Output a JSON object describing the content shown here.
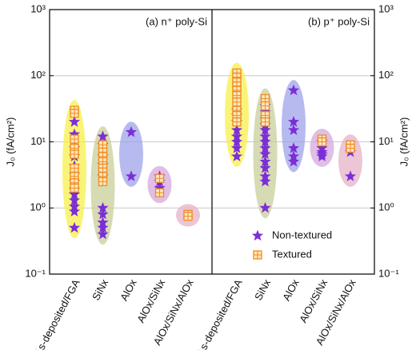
{
  "chart_data": [
    {
      "type": "scatter",
      "title": "(a) n⁺ poly-Si",
      "y_label": "J₀ (fA/cm²)",
      "y_axis_side": "left",
      "categories": [
        "As-deposited/FGA",
        "SiNx",
        "AlOx",
        "AlOx/SiNx",
        "AlOx/SiNx/AlOx"
      ],
      "highlight_colors": [
        "#f7f04a",
        "#c9cf9a",
        "#9fa3ea",
        "#d6a8dc",
        "#e6b3c8"
      ],
      "log_scale": true,
      "grid": true,
      "ylim": [
        0.1,
        1000
      ],
      "yticks": [
        {
          "value": 0.1,
          "label": "10⁻¹"
        },
        {
          "value": 1,
          "label": "10⁰"
        },
        {
          "value": 10,
          "label": "10¹"
        },
        {
          "value": 100,
          "label": "10²"
        },
        {
          "value": 1000,
          "label": "10³"
        }
      ],
      "series": [
        {
          "marker": "star",
          "color": "#7b2fd6",
          "x": [
            "As-deposited/FGA",
            "As-deposited/FGA",
            "As-deposited/FGA",
            "As-deposited/FGA",
            "As-deposited/FGA",
            "As-deposited/FGA",
            "As-deposited/FGA",
            "As-deposited/FGA",
            "As-deposited/FGA",
            "As-deposited/FGA",
            "As-deposited/FGA",
            "As-deposited/FGA",
            "As-deposited/FGA",
            "SiNx",
            "SiNx",
            "SiNx",
            "SiNx",
            "SiNx",
            "SiNx",
            "SiNx",
            "SiNx",
            "SiNx",
            "SiNx",
            "AlOx",
            "AlOx",
            "AlOx/SiNx",
            "AlOx/SiNx",
            "AlOx/SiNx"
          ],
          "values": [
            20,
            13,
            8,
            6,
            4.3,
            3.2,
            2.5,
            1.9,
            1.6,
            1.3,
            1.05,
            0.88,
            0.5,
            12,
            9,
            6,
            4.5,
            3,
            1,
            0.8,
            0.6,
            0.5,
            0.4,
            14,
            3,
            3,
            2.5,
            2
          ]
        },
        {
          "marker": "square",
          "color": "#f08a24",
          "x": [
            "As-deposited/FGA",
            "As-deposited/FGA",
            "As-deposited/FGA",
            "As-deposited/FGA",
            "As-deposited/FGA",
            "As-deposited/FGA",
            "As-deposited/FGA",
            "As-deposited/FGA",
            "As-deposited/FGA",
            "SiNx",
            "SiNx",
            "SiNx",
            "SiNx",
            "SiNx",
            "SiNx",
            "SiNx",
            "SiNx",
            "AlOx/SiNx",
            "AlOx/SiNx",
            "AlOx/SiNx/AlOx",
            "AlOx/SiNx/AlOx"
          ],
          "values": [
            30,
            27,
            11,
            8,
            6.5,
            4,
            3,
            2.4,
            2,
            9,
            7,
            6,
            5,
            4,
            3.5,
            3,
            2.5,
            2.8,
            1.7,
            0.8,
            0.75
          ]
        }
      ]
    },
    {
      "type": "scatter",
      "title": "(b) p⁺ poly-Si",
      "y_label": "J₀ (fA/cm²)",
      "y_axis_side": "right",
      "categories": [
        "As-deposited/FGA",
        "SiNx",
        "AlOx",
        "AlOx/SiNx",
        "AlOx/SiNx/AlOx"
      ],
      "highlight_colors": [
        "#f7f04a",
        "#c9cf9a",
        "#9fa3ea",
        "#d6a8dc",
        "#e6b3c8"
      ],
      "log_scale": true,
      "grid": true,
      "legend": "lower right",
      "ylim": [
        0.1,
        1000
      ],
      "yticks": [
        {
          "value": 0.1,
          "label": "10⁻¹"
        },
        {
          "value": 1,
          "label": "10⁰"
        },
        {
          "value": 10,
          "label": "10¹"
        },
        {
          "value": 100,
          "label": "10²"
        },
        {
          "value": 1000,
          "label": "10³"
        }
      ],
      "series": [
        {
          "name": "Non-textured",
          "marker": "star",
          "color": "#7b2fd6",
          "x": [
            "As-deposited/FGA",
            "As-deposited/FGA",
            "As-deposited/FGA",
            "As-deposited/FGA",
            "As-deposited/FGA",
            "As-deposited/FGA",
            "As-deposited/FGA",
            "As-deposited/FGA",
            "SiNx",
            "SiNx",
            "SiNx",
            "SiNx",
            "SiNx",
            "SiNx",
            "SiNx",
            "SiNx",
            "SiNx",
            "SiNx",
            "SiNx",
            "SiNx",
            "SiNx",
            "SiNx",
            "AlOx",
            "AlOx",
            "AlOx",
            "AlOx",
            "AlOx",
            "AlOx",
            "AlOx/SiNx",
            "AlOx/SiNx",
            "AlOx/SiNx",
            "AlOx/SiNx",
            "AlOx/SiNx",
            "AlOx/SiNx/AlOx",
            "AlOx/SiNx/AlOx"
          ],
          "values": [
            30,
            25,
            20,
            15,
            12,
            10,
            8,
            6,
            35,
            28,
            22,
            18,
            15,
            12,
            10,
            8,
            6.5,
            5,
            4,
            3,
            2.5,
            1,
            60,
            20,
            15,
            8,
            6,
            5,
            10,
            8,
            7,
            6.5,
            6,
            7,
            3
          ]
        },
        {
          "name": "Textured",
          "marker": "square",
          "color": "#f08a24",
          "x": [
            "As-deposited/FGA",
            "As-deposited/FGA",
            "As-deposited/FGA",
            "As-deposited/FGA",
            "As-deposited/FGA",
            "As-deposited/FGA",
            "As-deposited/FGA",
            "As-deposited/FGA",
            "As-deposited/FGA",
            "As-deposited/FGA",
            "SiNx",
            "SiNx",
            "SiNx",
            "SiNx",
            "AlOx/SiNx",
            "AlOx/SiNx",
            "AlOx/SiNx/AlOx",
            "AlOx/SiNx/AlOx"
          ],
          "values": [
            110,
            95,
            80,
            70,
            60,
            50,
            40,
            30,
            25,
            20,
            45,
            35,
            25,
            20,
            11,
            10,
            9,
            8
          ]
        }
      ]
    }
  ]
}
